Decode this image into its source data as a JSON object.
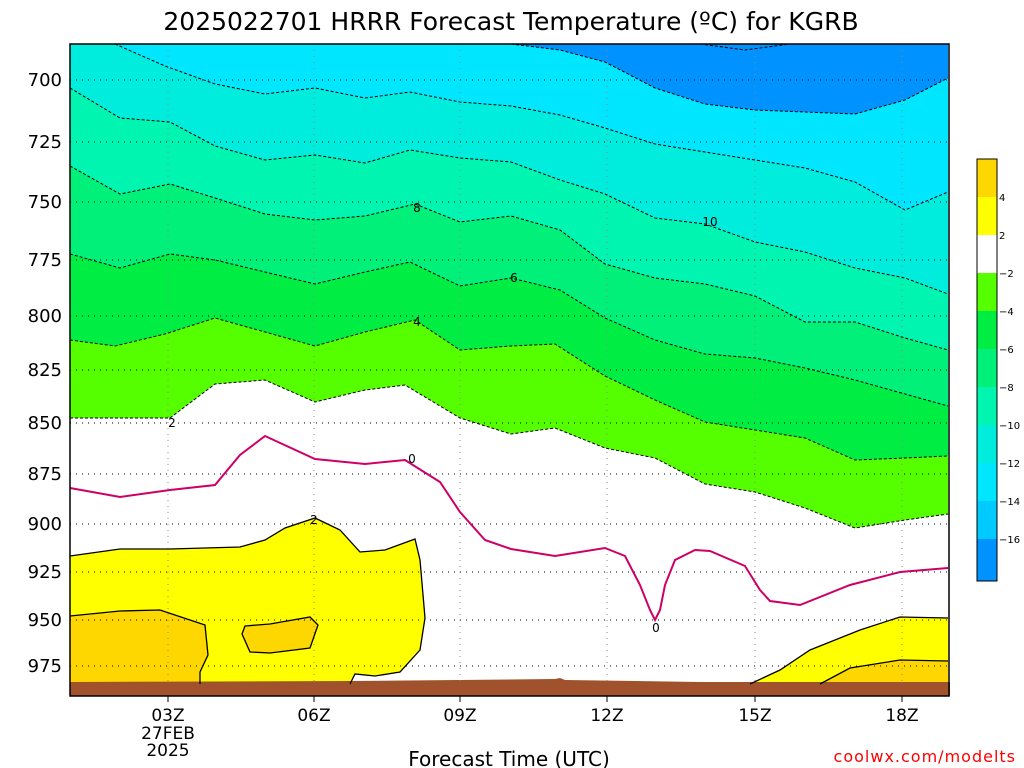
{
  "chart_data": {
    "type": "contour",
    "title": "2025022701 HRRR Forecast Temperature (ºC) for KGRB",
    "xlabel": "Forecast Time (UTC)",
    "x_ticks": [
      "03Z",
      "06Z",
      "09Z",
      "12Z",
      "15Z",
      "18Z"
    ],
    "x_tick_date": [
      "27FEB",
      "2025"
    ],
    "y_ticks": [
      700,
      725,
      750,
      775,
      800,
      825,
      850,
      875,
      900,
      925,
      950,
      975
    ],
    "ylim": [
      1000,
      684
    ],
    "y_scale": "log",
    "credit": "coolwx.com/modelts",
    "colorbar": {
      "labels": [
        "4",
        "2",
        "−2",
        "−4",
        "−6",
        "−8",
        "−10",
        "−12",
        "−14",
        "−16"
      ],
      "colors": [
        "#ffd700",
        "#ffff00",
        "#ffffff",
        "#55ff00",
        "#00ee44",
        "#00f07a",
        "#00f5b0",
        "#00ecdc",
        "#00e6ff",
        "#00caff",
        "#00aaff",
        "#0092ff"
      ]
    },
    "contour_labels": [
      "8",
      "10",
      "6",
      "4",
      "2",
      "0",
      "2",
      "0"
    ],
    "grid": true
  }
}
